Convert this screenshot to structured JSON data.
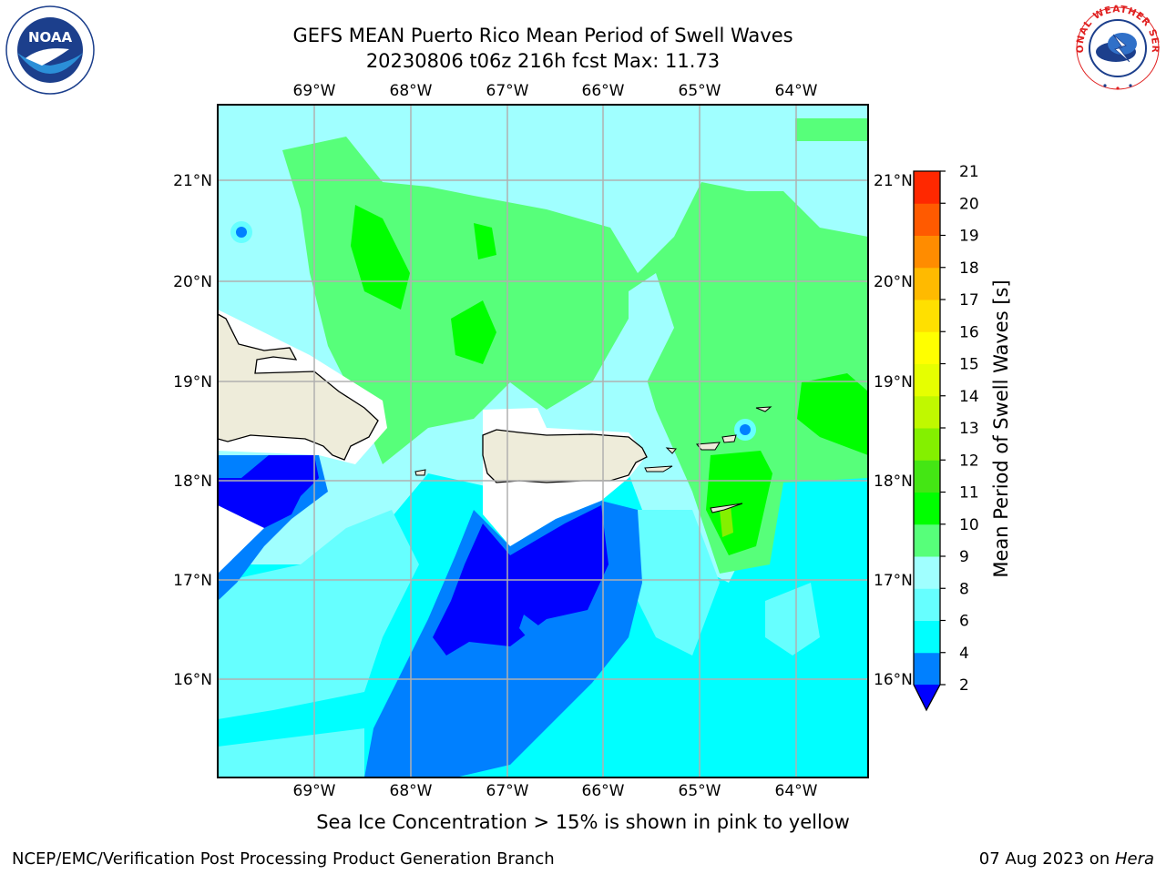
{
  "header": {
    "title_line1": "GEFS MEAN Puerto Rico Mean Period of Swell Waves",
    "title_line2": "20230806 t06z 216h fcst   Max: 11.73"
  },
  "logos": {
    "left": "NOAA",
    "right": "NATIONAL WEATHER SERVICE"
  },
  "map": {
    "lon_labels": [
      "69°W",
      "68°W",
      "67°W",
      "66°W",
      "65°W",
      "64°W"
    ],
    "lat_labels": [
      "21°N",
      "20°N",
      "19°N",
      "18°N",
      "17°N",
      "16°N"
    ],
    "colors": {
      "land": "#eeecda",
      "grid": "#b0b0b0"
    }
  },
  "colorbar": {
    "label": "Mean Period of Swell Waves [s]",
    "ticks": [
      "2",
      "4",
      "6",
      "8",
      "9",
      "10",
      "11",
      "12",
      "13",
      "14",
      "15",
      "16",
      "17",
      "18",
      "19",
      "20",
      "21"
    ],
    "colors": [
      "#0000ff",
      "#0080ff",
      "#00ffff",
      "#66ffff",
      "#a0ffff",
      "#57ff7a",
      "#00ff00",
      "#44e614",
      "#84f000",
      "#c0f800",
      "#e6ff00",
      "#ffff00",
      "#ffe000",
      "#ffba00",
      "#ff8c00",
      "#ff5a00",
      "#ff2800",
      "#ff0000"
    ]
  },
  "caption": "Sea Ice Concentration > 15% is shown in pink to yellow",
  "footer": {
    "left": "NCEP/EMC/Verification Post Processing Product Generation Branch",
    "date": "07 Aug 2023 on ",
    "host": "Hera"
  }
}
